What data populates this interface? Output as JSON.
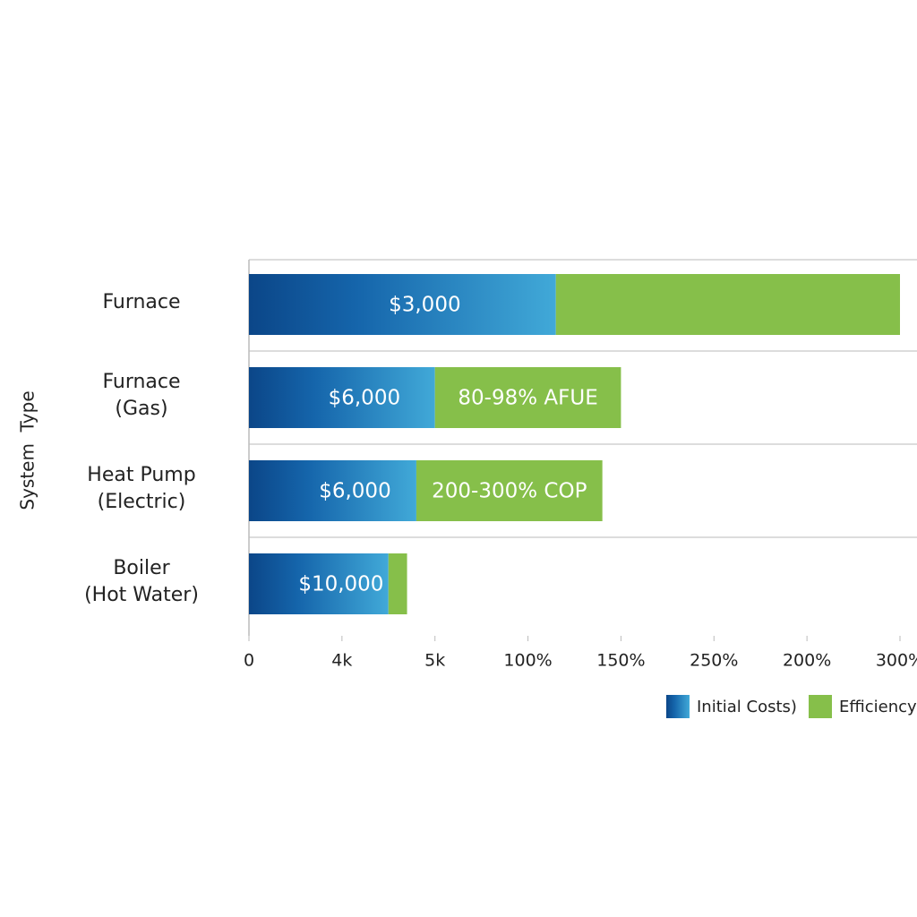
{
  "chart_data": {
    "type": "stacked-barh",
    "y_label": "System  Type",
    "categories": [
      "Furnace",
      "Furnace\n(Gas)",
      "Heat Pump\n(Electric)",
      "Boiler\n(Hot Water)"
    ],
    "series": [
      {
        "name": "Initial Costs)",
        "color": "#41a9d8",
        "values": [
          3.3,
          2.0,
          1.8,
          1.5
        ],
        "value_labels": [
          "$3,000",
          "$6,000",
          "$6,000",
          "$10,000"
        ]
      },
      {
        "name": "Efficiency",
        "color": "#86bf4a",
        "values": [
          3.7,
          2.0,
          2.0,
          0.2
        ],
        "value_labels": [
          null,
          "80-98% AFUE",
          "200-300% COP",
          null
        ]
      }
    ],
    "xlim": [
      0,
      7
    ],
    "xticks": [
      0,
      {
        "value": 1,
        "label": "4k"
      },
      {
        "value": 2,
        "label": "5k"
      },
      {
        "value": 3,
        "label": "100%"
      },
      {
        "value": 4,
        "label": "150%"
      },
      {
        "value": 5,
        "label": "250%"
      },
      {
        "value": 6,
        "label": "200%"
      },
      {
        "value": 7,
        "label": "300%"
      }
    ],
    "grid": true,
    "legend": "bottom-right"
  }
}
